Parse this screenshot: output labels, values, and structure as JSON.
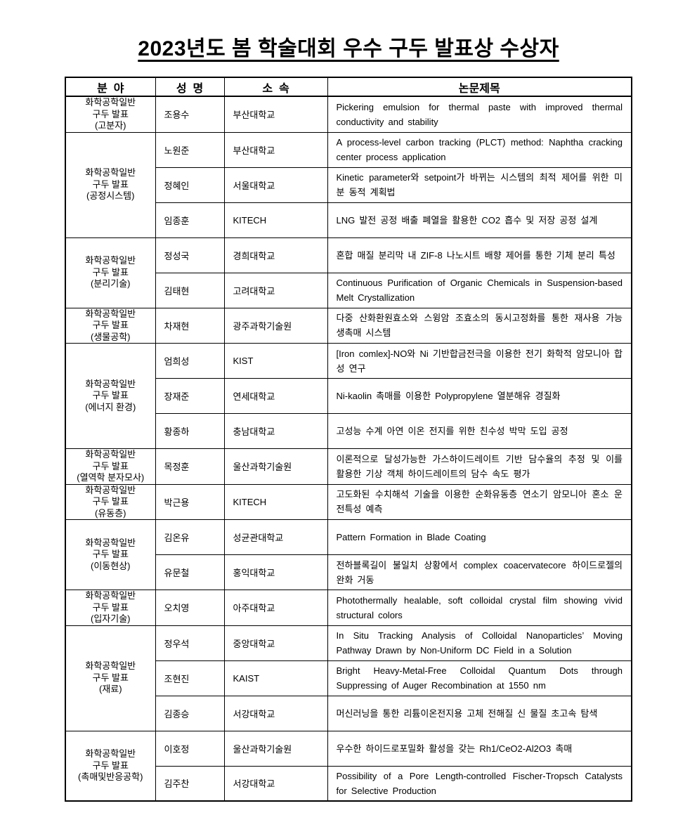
{
  "title": "2023년도 봄 학술대회 우수 구두 발표상 수상자",
  "table": {
    "headers": [
      "분  야",
      "성  명",
      "소  속",
      "논문제목"
    ],
    "groups": [
      {
        "field_lines": [
          "화학공학일반",
          "구두 발표",
          "(고분자)"
        ],
        "rows": [
          {
            "name": "조용수",
            "affiliation": "부산대학교",
            "title": "Pickering emulsion for thermal paste with improved thermal conductivity and stability"
          }
        ]
      },
      {
        "field_lines": [
          "화학공학일반",
          "구두 발표",
          "(공정시스템)"
        ],
        "rows": [
          {
            "name": "노원준",
            "affiliation": "부산대학교",
            "title": "A process-level carbon tracking (PLCT) method: Naphtha cracking center process application"
          },
          {
            "name": "정혜인",
            "affiliation": "서울대학교",
            "title": "Kinetic parameter와 setpoint가 바뀌는 시스템의 최적 제어를 위한 미분 동적 계획법"
          },
          {
            "name": "임종훈",
            "affiliation": "KITECH",
            "title": "LNG 발전 공정 배출 폐열을 활용한 CO2 흡수 및 저장 공정 설계"
          }
        ]
      },
      {
        "field_lines": [
          "화학공학일반",
          "구두 발표",
          "(분리기술)"
        ],
        "rows": [
          {
            "name": "정성국",
            "affiliation": "경희대학교",
            "title": "혼합 매질 분리막 내 ZIF-8 나노시트 배향 제어를 통한 기체 분리 특성"
          },
          {
            "name": "김태현",
            "affiliation": "고려대학교",
            "title": "Continuous Purification of Organic Chemicals in Suspension-based Melt Crystallization"
          }
        ]
      },
      {
        "field_lines": [
          "화학공학일반",
          "구두 발표",
          "(생물공학)"
        ],
        "rows": [
          {
            "name": "차재현",
            "affiliation": "광주과학기술원",
            "title": "다중 산화환원효소와 스윙암 조효소의 동시고정화를 통한 재사용 가능 생촉매 시스템"
          }
        ]
      },
      {
        "field_lines": [
          "화학공학일반",
          "구두 발표",
          "(에너지 환경)"
        ],
        "rows": [
          {
            "name": "엄희성",
            "affiliation": "KIST",
            "title": "[Iron comlex]-NO와 Ni 기반합금전극을 이용한 전기 화학적 암모니아 합성 연구"
          },
          {
            "name": "장재준",
            "affiliation": "연세대학교",
            "title": "Ni-kaolin 촉매를 이용한 Polypropylene 열분해유 경질화"
          },
          {
            "name": "황종하",
            "affiliation": "충남대학교",
            "title": "고성능 수계 아연 이온 전지를 위한 친수성 박막 도입 공정"
          }
        ]
      },
      {
        "field_lines": [
          "화학공학일반",
          "구두 발표",
          "(열역학 분자모사)"
        ],
        "rows": [
          {
            "name": "목정훈",
            "affiliation": "울산과학기술원",
            "title": "이론적으로 달성가능한 가스하이드레이트 기반 담수율의 추정 및 이를 활용한 기상 객체 하이드레이트의 담수 속도 평가"
          }
        ]
      },
      {
        "field_lines": [
          "화학공학일반",
          "구두 발표",
          "(유동층)"
        ],
        "rows": [
          {
            "name": "박근용",
            "affiliation": "KITECH",
            "title": "고도화된 수치해석 기술을 이용한 순화유동층 연소기 암모니아 혼소 운전특성 예측"
          }
        ]
      },
      {
        "field_lines": [
          "화학공학일반",
          "구두 발표",
          "(이동현상)"
        ],
        "rows": [
          {
            "name": "김온유",
            "affiliation": "성균관대학교",
            "title": "Pattern Formation in Blade Coating"
          },
          {
            "name": "유문철",
            "affiliation": "홍익대학교",
            "title": "전하블록길이 불일치 상황에서 complex coacervatecore 하이드로젤의 완화 거동"
          }
        ]
      },
      {
        "field_lines": [
          "화학공학일반",
          "구두 발표",
          "(입자기술)"
        ],
        "rows": [
          {
            "name": "오치영",
            "affiliation": "아주대학교",
            "title": "Photothermally healable, soft colloidal crystal film showing vivid structural colors"
          }
        ]
      },
      {
        "field_lines": [
          "화학공학일반",
          "구두 발표",
          "(재료)"
        ],
        "rows": [
          {
            "name": "정우석",
            "affiliation": "중앙대학교",
            "title": "In Situ Tracking Analysis of Colloidal Nanoparticles’ Moving Pathway Drawn by Non-Uniform DC Field in a Solution"
          },
          {
            "name": "조현진",
            "affiliation": "KAIST",
            "title": "Bright Heavy-Metal-Free Colloidal Quantum Dots through Suppressing of Auger Recombination at 1550 nm"
          },
          {
            "name": "김종승",
            "affiliation": "서강대학교",
            "title": "머신러닝을 통한 리튬이온전지용 고체 전해질 신 물질 초고속 탐색"
          }
        ]
      },
      {
        "field_lines": [
          "화학공학일반",
          "구두 발표",
          "(촉매및반응공학)"
        ],
        "rows": [
          {
            "name": "이호정",
            "affiliation": "울산과학기술원",
            "title": "우수한 하이드로포밀화 활성을 갖는 Rh1/CeO2-Al2O3 촉매"
          },
          {
            "name": "김주찬",
            "affiliation": "서강대학교",
            "title": "Possibility of a Pore Length-controlled Fischer-Tropsch Catalysts for Selective Production"
          }
        ]
      }
    ]
  }
}
